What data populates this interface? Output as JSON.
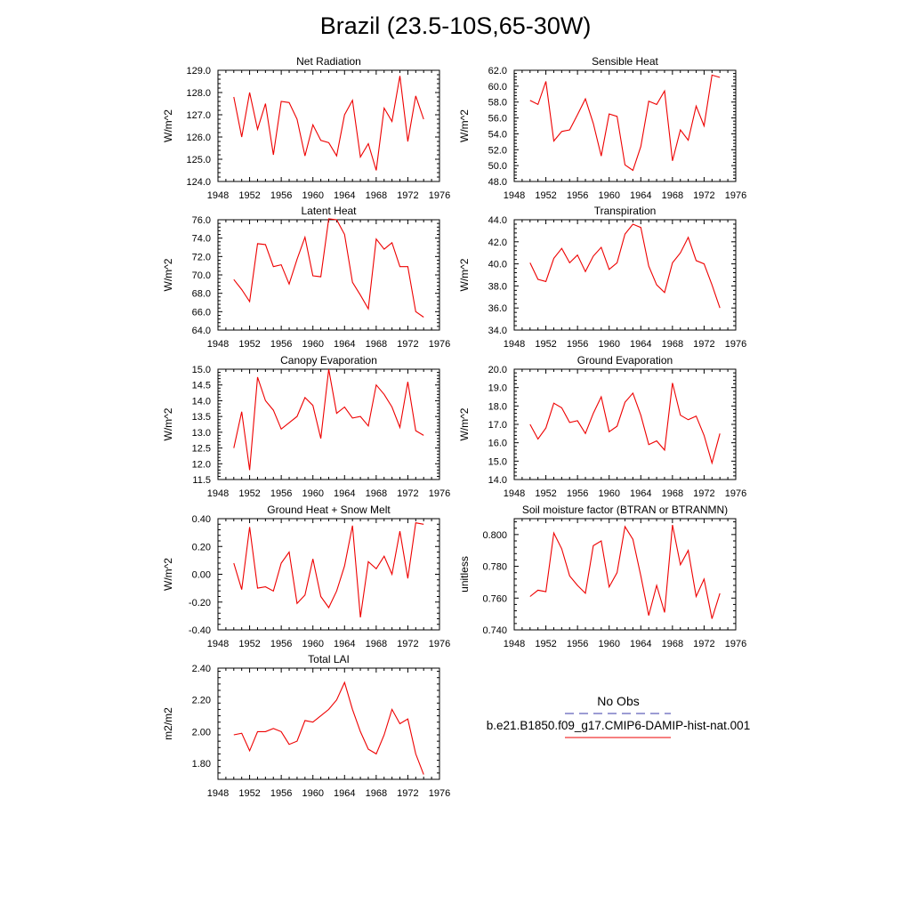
{
  "title": "Brazil (23.5-10S,65-30W)",
  "colors": {
    "model": "#ee0000",
    "obs": "#3a3aaa",
    "axis": "#000000"
  },
  "legend": {
    "obs_label": "No Obs",
    "model_label": "b.e21.B1850.f09_g17.CMIP6-DAMIP-hist-nat.001"
  },
  "chart_data": [
    {
      "type": "line",
      "title": "Net Radiation",
      "ylabel": "W/m^2",
      "xlim": [
        1948,
        1976
      ],
      "ylim": [
        124.0,
        129.0
      ],
      "xticks": [
        1948,
        1952,
        1956,
        1960,
        1964,
        1968,
        1972,
        1976
      ],
      "yticks": [
        "124.0",
        "125.0",
        "126.0",
        "127.0",
        "128.0",
        "129.0"
      ],
      "x": [
        1950,
        1951,
        1952,
        1953,
        1954,
        1955,
        1956,
        1957,
        1958,
        1959,
        1960,
        1961,
        1962,
        1963,
        1964,
        1965,
        1966,
        1967,
        1968,
        1969,
        1970,
        1971,
        1972,
        1973,
        1974
      ],
      "series": [
        {
          "values": [
            127.8,
            126.0,
            128.0,
            126.35,
            127.5,
            125.2,
            127.6,
            127.55,
            126.8,
            125.15,
            126.55,
            125.85,
            125.75,
            125.15,
            127.0,
            127.65,
            125.1,
            125.7,
            124.5,
            127.3,
            126.7,
            128.75,
            125.8,
            127.85,
            126.8
          ]
        }
      ]
    },
    {
      "type": "line",
      "title": "Sensible Heat",
      "ylabel": "W/m^2",
      "xlim": [
        1948,
        1976
      ],
      "ylim": [
        48.0,
        62.0
      ],
      "xticks": [
        1948,
        1952,
        1956,
        1960,
        1964,
        1968,
        1972,
        1976
      ],
      "yticks": [
        "48.0",
        "50.0",
        "52.0",
        "54.0",
        "56.0",
        "58.0",
        "60.0",
        "62.0"
      ],
      "x": [
        1950,
        1951,
        1952,
        1953,
        1954,
        1955,
        1956,
        1957,
        1958,
        1959,
        1960,
        1961,
        1962,
        1963,
        1964,
        1965,
        1966,
        1967,
        1968,
        1969,
        1970,
        1971,
        1972,
        1973,
        1974
      ],
      "series": [
        {
          "values": [
            58.2,
            57.7,
            60.6,
            53.1,
            54.3,
            54.5,
            56.4,
            58.4,
            55.3,
            51.2,
            56.5,
            56.2,
            50.1,
            49.4,
            52.4,
            58.1,
            57.7,
            59.4,
            50.6,
            54.5,
            53.2,
            57.5,
            55.0,
            61.4,
            61.1
          ]
        }
      ]
    },
    {
      "type": "line",
      "title": "Latent Heat",
      "ylabel": "W/m^2",
      "xlim": [
        1948,
        1976
      ],
      "ylim": [
        64.0,
        76.0
      ],
      "xticks": [
        1948,
        1952,
        1956,
        1960,
        1964,
        1968,
        1972,
        1976
      ],
      "yticks": [
        "64.0",
        "66.0",
        "68.0",
        "70.0",
        "72.0",
        "74.0",
        "76.0"
      ],
      "x": [
        1950,
        1951,
        1952,
        1953,
        1954,
        1955,
        1956,
        1957,
        1958,
        1959,
        1960,
        1961,
        1962,
        1963,
        1964,
        1965,
        1966,
        1967,
        1968,
        1969,
        1970,
        1971,
        1972,
        1973,
        1974
      ],
      "series": [
        {
          "values": [
            69.5,
            68.4,
            67.1,
            73.4,
            73.3,
            70.9,
            71.1,
            69.0,
            71.7,
            74.1,
            69.9,
            69.8,
            76.1,
            76.0,
            74.4,
            69.2,
            67.8,
            66.3,
            73.9,
            72.8,
            73.5,
            70.9,
            70.9,
            66.0,
            65.4
          ]
        }
      ]
    },
    {
      "type": "line",
      "title": "Transpiration",
      "ylabel": "W/m^2",
      "xlim": [
        1948,
        1976
      ],
      "ylim": [
        34.0,
        44.0
      ],
      "xticks": [
        1948,
        1952,
        1956,
        1960,
        1964,
        1968,
        1972,
        1976
      ],
      "yticks": [
        "34.0",
        "36.0",
        "38.0",
        "40.0",
        "42.0",
        "44.0"
      ],
      "x": [
        1950,
        1951,
        1952,
        1953,
        1954,
        1955,
        1956,
        1957,
        1958,
        1959,
        1960,
        1961,
        1962,
        1963,
        1964,
        1965,
        1966,
        1967,
        1968,
        1969,
        1970,
        1971,
        1972,
        1973,
        1974
      ],
      "series": [
        {
          "values": [
            40.1,
            38.6,
            38.4,
            40.5,
            41.4,
            40.1,
            40.8,
            39.3,
            40.7,
            41.5,
            39.5,
            40.1,
            42.7,
            43.6,
            43.3,
            39.8,
            38.1,
            37.4,
            40.1,
            41.0,
            42.4,
            40.3,
            40.0,
            38.1,
            36.0
          ]
        }
      ]
    },
    {
      "type": "line",
      "title": "Canopy Evaporation",
      "ylabel": "W/m^2",
      "xlim": [
        1948,
        1976
      ],
      "ylim": [
        11.5,
        15.0
      ],
      "xticks": [
        1948,
        1952,
        1956,
        1960,
        1964,
        1968,
        1972,
        1976
      ],
      "yticks": [
        "11.5",
        "12.0",
        "12.5",
        "13.0",
        "13.5",
        "14.0",
        "14.5",
        "15.0"
      ],
      "x": [
        1950,
        1951,
        1952,
        1953,
        1954,
        1955,
        1956,
        1957,
        1958,
        1959,
        1960,
        1961,
        1962,
        1963,
        1964,
        1965,
        1966,
        1967,
        1968,
        1969,
        1970,
        1971,
        1972,
        1973,
        1974
      ],
      "series": [
        {
          "values": [
            12.5,
            13.65,
            11.8,
            14.75,
            14.0,
            13.7,
            13.1,
            13.3,
            13.5,
            14.1,
            13.85,
            12.8,
            15.0,
            13.6,
            13.8,
            13.45,
            13.5,
            13.2,
            14.5,
            14.2,
            13.8,
            13.15,
            14.6,
            13.05,
            12.9
          ]
        }
      ]
    },
    {
      "type": "line",
      "title": "Ground Evaporation",
      "ylabel": "W/m^2",
      "xlim": [
        1948,
        1976
      ],
      "ylim": [
        14.0,
        20.0
      ],
      "xticks": [
        1948,
        1952,
        1956,
        1960,
        1964,
        1968,
        1972,
        1976
      ],
      "yticks": [
        "14.0",
        "15.0",
        "16.0",
        "17.0",
        "18.0",
        "19.0",
        "20.0"
      ],
      "x": [
        1950,
        1951,
        1952,
        1953,
        1954,
        1955,
        1956,
        1957,
        1958,
        1959,
        1960,
        1961,
        1962,
        1963,
        1964,
        1965,
        1966,
        1967,
        1968,
        1969,
        1970,
        1971,
        1972,
        1973,
        1974
      ],
      "series": [
        {
          "values": [
            17.0,
            16.2,
            16.8,
            18.15,
            17.9,
            17.1,
            17.2,
            16.5,
            17.6,
            18.5,
            16.6,
            16.9,
            18.2,
            18.7,
            17.5,
            15.9,
            16.1,
            15.6,
            19.25,
            17.5,
            17.25,
            17.45,
            16.4,
            14.9,
            16.5
          ]
        }
      ]
    },
    {
      "type": "line",
      "title": "Ground Heat + Snow Melt",
      "ylabel": "W/m^2",
      "xlim": [
        1948,
        1976
      ],
      "ylim": [
        -0.4,
        0.4
      ],
      "xticks": [
        1948,
        1952,
        1956,
        1960,
        1964,
        1968,
        1972,
        1976
      ],
      "yticks": [
        "-0.40",
        "-0.20",
        "0.00",
        "0.20",
        "0.40"
      ],
      "x": [
        1950,
        1951,
        1952,
        1953,
        1954,
        1955,
        1956,
        1957,
        1958,
        1959,
        1960,
        1961,
        1962,
        1963,
        1964,
        1965,
        1966,
        1967,
        1968,
        1969,
        1970,
        1971,
        1972,
        1973,
        1974
      ],
      "series": [
        {
          "values": [
            0.08,
            -0.11,
            0.34,
            -0.1,
            -0.09,
            -0.12,
            0.08,
            0.16,
            -0.21,
            -0.15,
            0.11,
            -0.16,
            -0.24,
            -0.12,
            0.06,
            0.35,
            -0.31,
            0.09,
            0.04,
            0.13,
            0.0,
            0.31,
            -0.03,
            0.37,
            0.36
          ]
        }
      ]
    },
    {
      "type": "line",
      "title": "Soil moisture factor (BTRAN or BTRANMN)",
      "ylabel": "unitless",
      "xlim": [
        1948,
        1976
      ],
      "ylim": [
        0.74,
        0.81
      ],
      "xticks": [
        1948,
        1952,
        1956,
        1960,
        1964,
        1968,
        1972,
        1976
      ],
      "yticks": [
        "0.740",
        "0.760",
        "0.780",
        "0.800"
      ],
      "x": [
        1950,
        1951,
        1952,
        1953,
        1954,
        1955,
        1956,
        1957,
        1958,
        1959,
        1960,
        1961,
        1962,
        1963,
        1964,
        1965,
        1966,
        1967,
        1968,
        1969,
        1970,
        1971,
        1972,
        1973,
        1974
      ],
      "series": [
        {
          "values": [
            0.761,
            0.765,
            0.764,
            0.801,
            0.791,
            0.774,
            0.768,
            0.763,
            0.793,
            0.796,
            0.767,
            0.776,
            0.805,
            0.797,
            0.774,
            0.749,
            0.768,
            0.751,
            0.806,
            0.781,
            0.79,
            0.761,
            0.772,
            0.747,
            0.763
          ]
        }
      ]
    },
    {
      "type": "line",
      "title": "Total LAI",
      "ylabel": "m2/m2",
      "xlim": [
        1948,
        1976
      ],
      "ylim": [
        1.7,
        2.4
      ],
      "xticks": [
        1948,
        1952,
        1956,
        1960,
        1964,
        1968,
        1972,
        1976
      ],
      "yticks": [
        "1.80",
        "2.00",
        "2.20",
        "2.40"
      ],
      "x": [
        1950,
        1951,
        1952,
        1953,
        1954,
        1955,
        1956,
        1957,
        1958,
        1959,
        1960,
        1961,
        1962,
        1963,
        1964,
        1965,
        1966,
        1967,
        1968,
        1969,
        1970,
        1971,
        1972,
        1973,
        1974
      ],
      "series": [
        {
          "values": [
            1.98,
            1.99,
            1.88,
            2.0,
            2.0,
            2.02,
            2.0,
            1.92,
            1.94,
            2.07,
            2.06,
            2.1,
            2.14,
            2.2,
            2.31,
            2.14,
            2.0,
            1.89,
            1.86,
            1.98,
            2.14,
            2.05,
            2.08,
            1.86,
            1.73
          ]
        }
      ]
    }
  ]
}
